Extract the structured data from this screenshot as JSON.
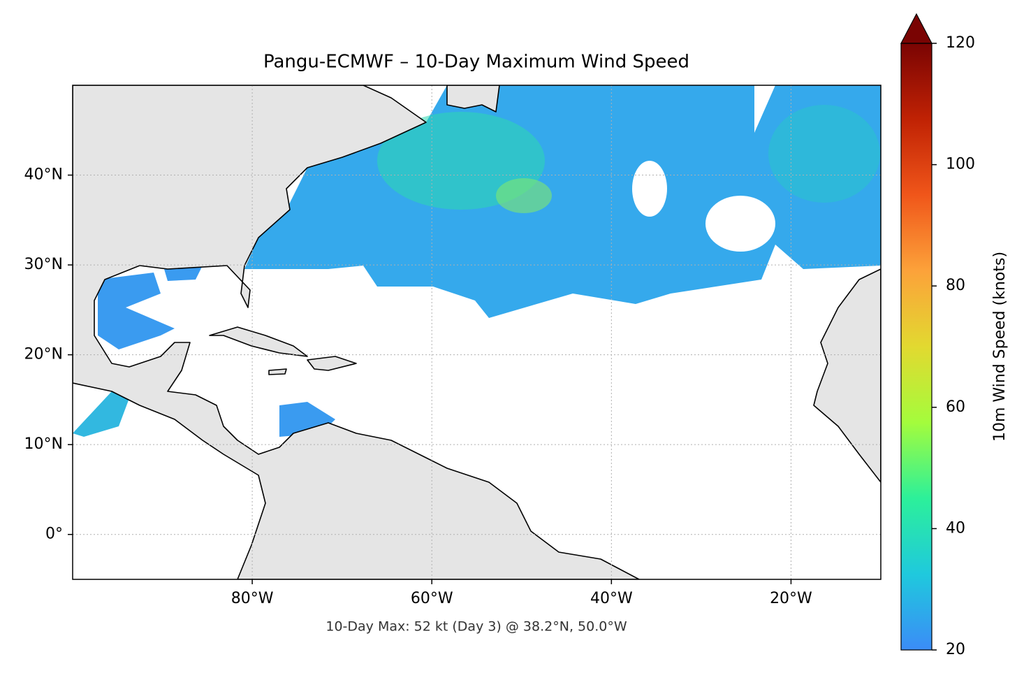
{
  "chart_data": {
    "type": "map",
    "title": "Pangu-ECMWF – 10-Day Maximum Wind Speed",
    "annotation": "10-Day Max: 52 kt (Day 3) @ 38.2°N, 50.0°W",
    "xlim": [
      -100,
      -10
    ],
    "ylim": [
      -5,
      50
    ],
    "xticks": [
      {
        "value": -80,
        "label": "80°W"
      },
      {
        "value": -60,
        "label": "60°W"
      },
      {
        "value": -40,
        "label": "40°W"
      },
      {
        "value": -20,
        "label": "20°W"
      }
    ],
    "yticks": [
      {
        "value": 0,
        "label": "0°"
      },
      {
        "value": 10,
        "label": "10°N"
      },
      {
        "value": 20,
        "label": "20°N"
      },
      {
        "value": 30,
        "label": "30°N"
      },
      {
        "value": 40,
        "label": "40°N"
      }
    ],
    "grid": true,
    "colorbar": {
      "label": "10m Wind Speed (knots)",
      "lim": [
        20,
        120
      ],
      "ticks": [
        20,
        40,
        60,
        80,
        100,
        120
      ],
      "colors": [
        "#3b8cf7",
        "#1fc9dd",
        "#2cf09a",
        "#a4fc3c",
        "#e2d930",
        "#fca23a",
        "#f0561a",
        "#c02204",
        "#7a0403"
      ],
      "extend": "max"
    }
  }
}
